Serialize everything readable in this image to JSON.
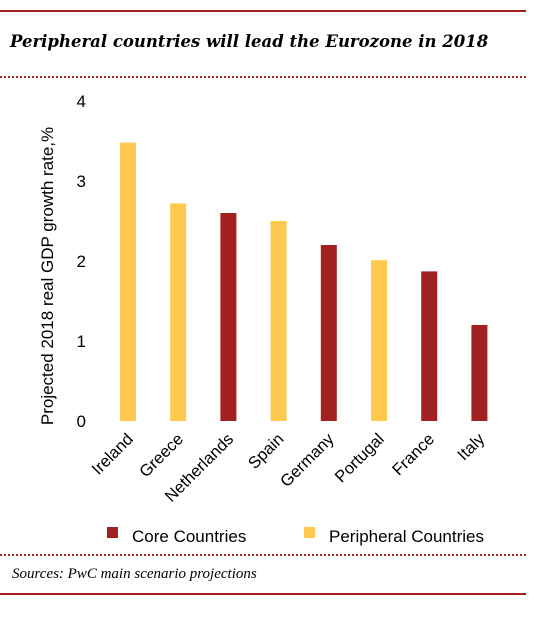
{
  "colors": {
    "core": "#a32020",
    "peripheral": "#ffc94f",
    "rule": "#a32020"
  },
  "header": {
    "title": "Peripheral countries will lead the Eurozone in 2018"
  },
  "footer": {
    "source": "Sources: PwC main scenario projections"
  },
  "chart_data": {
    "type": "bar",
    "title": "Peripheral countries will lead the Eurozone in 2018",
    "xlabel": "",
    "ylabel": "Projected 2018 real GDP growth rate,%",
    "ylim": [
      0,
      4
    ],
    "yticks": [
      "0",
      "1",
      "2",
      "3",
      "4"
    ],
    "grid": false,
    "legend_position": "bottom",
    "categories": [
      "Ireland",
      "Greece",
      "Netherlands",
      "Spain",
      "Germany",
      "Portugal",
      "France",
      "Italy"
    ],
    "values": [
      3.48,
      2.72,
      2.6,
      2.5,
      2.2,
      2.01,
      1.87,
      1.2
    ],
    "groups": [
      "peripheral",
      "peripheral",
      "core",
      "peripheral",
      "core",
      "peripheral",
      "core",
      "core"
    ],
    "legend": [
      {
        "key": "core",
        "label": "Core Countries"
      },
      {
        "key": "peripheral",
        "label": "Peripheral Countries"
      }
    ]
  }
}
